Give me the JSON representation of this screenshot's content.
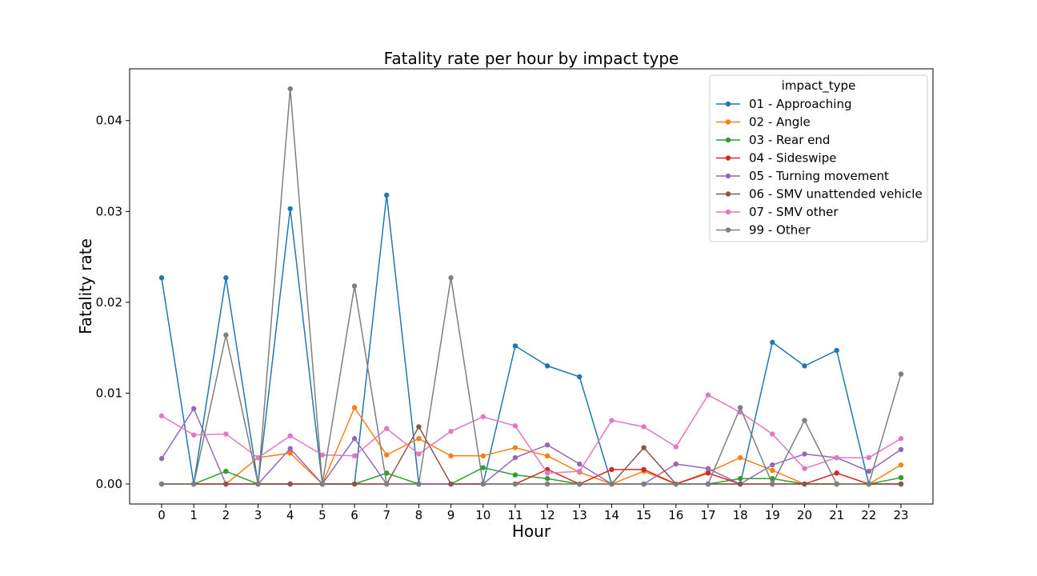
{
  "chart_data": {
    "type": "line",
    "title": "Fatality rate per hour by impact type",
    "xlabel": "Hour",
    "ylabel": "Fatality rate",
    "x": [
      0,
      1,
      2,
      3,
      4,
      5,
      6,
      7,
      8,
      9,
      10,
      11,
      12,
      13,
      14,
      15,
      16,
      17,
      18,
      19,
      20,
      21,
      22,
      23
    ],
    "x_ticks": [
      "0",
      "1",
      "2",
      "3",
      "4",
      "5",
      "6",
      "7",
      "8",
      "9",
      "10",
      "11",
      "12",
      "13",
      "14",
      "15",
      "16",
      "17",
      "18",
      "19",
      "20",
      "21",
      "22",
      "23"
    ],
    "ylim": [
      -0.0022,
      0.0457
    ],
    "y_ticks": [
      0.0,
      0.01,
      0.02,
      0.03,
      0.04
    ],
    "y_tick_labels": [
      "0.00",
      "0.01",
      "0.02",
      "0.03",
      "0.04"
    ],
    "grid": false,
    "legend": {
      "title": "impact_type",
      "placement": "top-right"
    },
    "series": [
      {
        "name": "01 - Approaching",
        "color": "#1f77b4",
        "values": [
          0.0227,
          0,
          0.0227,
          0,
          0.0303,
          0,
          0,
          0.0318,
          0,
          0,
          0,
          0.0152,
          0.013,
          0.0118,
          0,
          0,
          0,
          0,
          0,
          0.0156,
          0.013,
          0.0147,
          0,
          0
        ]
      },
      {
        "name": "02 - Angle",
        "color": "#ff7f0e",
        "values": [
          0,
          0,
          0,
          0.0029,
          0.0034,
          0,
          0.0084,
          0.0032,
          0.005,
          0.0031,
          0.0031,
          0.004,
          0.0031,
          0.0013,
          0,
          0.0014,
          0,
          0.0013,
          0.0029,
          0.0015,
          0,
          0,
          0,
          0.0021
        ]
      },
      {
        "name": "03 - Rear end",
        "color": "#2ca02c",
        "values": [
          0,
          0,
          0.0014,
          0,
          0,
          0,
          0,
          0.0012,
          0,
          0,
          0.0018,
          0.001,
          0.0006,
          0,
          0,
          0,
          0,
          0,
          0.0006,
          0.0006,
          0,
          0,
          0,
          0.0007
        ]
      },
      {
        "name": "04 - Sideswipe",
        "color": "#d62728",
        "values": [
          0,
          0,
          0,
          0,
          0,
          0,
          0,
          0,
          0,
          0,
          0,
          0,
          0.0016,
          0,
          0.0016,
          0.0016,
          0,
          0.0012,
          0,
          0,
          0,
          0.0012,
          0,
          0
        ]
      },
      {
        "name": "05 - Turning movement",
        "color": "#9467bd",
        "values": [
          0.0028,
          0.0083,
          0,
          0,
          0.0039,
          0,
          0.005,
          0,
          0,
          0,
          0,
          0.0029,
          0.0043,
          0.0022,
          0,
          0,
          0.0022,
          0.0017,
          0,
          0.0021,
          0.0033,
          0.0029,
          0.0014,
          0.0038
        ]
      },
      {
        "name": "06 - SMV unattended vehicle",
        "color": "#8c564b",
        "values": [
          0,
          0,
          0,
          0,
          0,
          0,
          0,
          0,
          0.0063,
          0,
          0,
          0,
          0,
          0,
          0,
          0.004,
          0,
          0,
          0,
          0,
          0,
          0,
          0,
          0
        ]
      },
      {
        "name": "07 - SMV other",
        "color": "#e377c2",
        "values": [
          0.0075,
          0.0054,
          0.0055,
          0.0029,
          0.0053,
          0.0032,
          0.0031,
          0.0061,
          0.0033,
          0.0058,
          0.0074,
          0.0064,
          0.0012,
          0.0014,
          0.007,
          0.0063,
          0.0041,
          0.0098,
          0.0079,
          0.0055,
          0.0017,
          0.0029,
          0.0029,
          0.005
        ]
      },
      {
        "name": "99 - Other",
        "color": "#7f7f7f",
        "values": [
          0,
          0,
          0.0164,
          0,
          0.0435,
          0,
          0.0218,
          0,
          0,
          0.0227,
          0,
          0,
          0,
          0,
          0,
          0,
          0,
          0,
          0.0084,
          0,
          0.007,
          0,
          0,
          0.0121
        ]
      }
    ]
  }
}
